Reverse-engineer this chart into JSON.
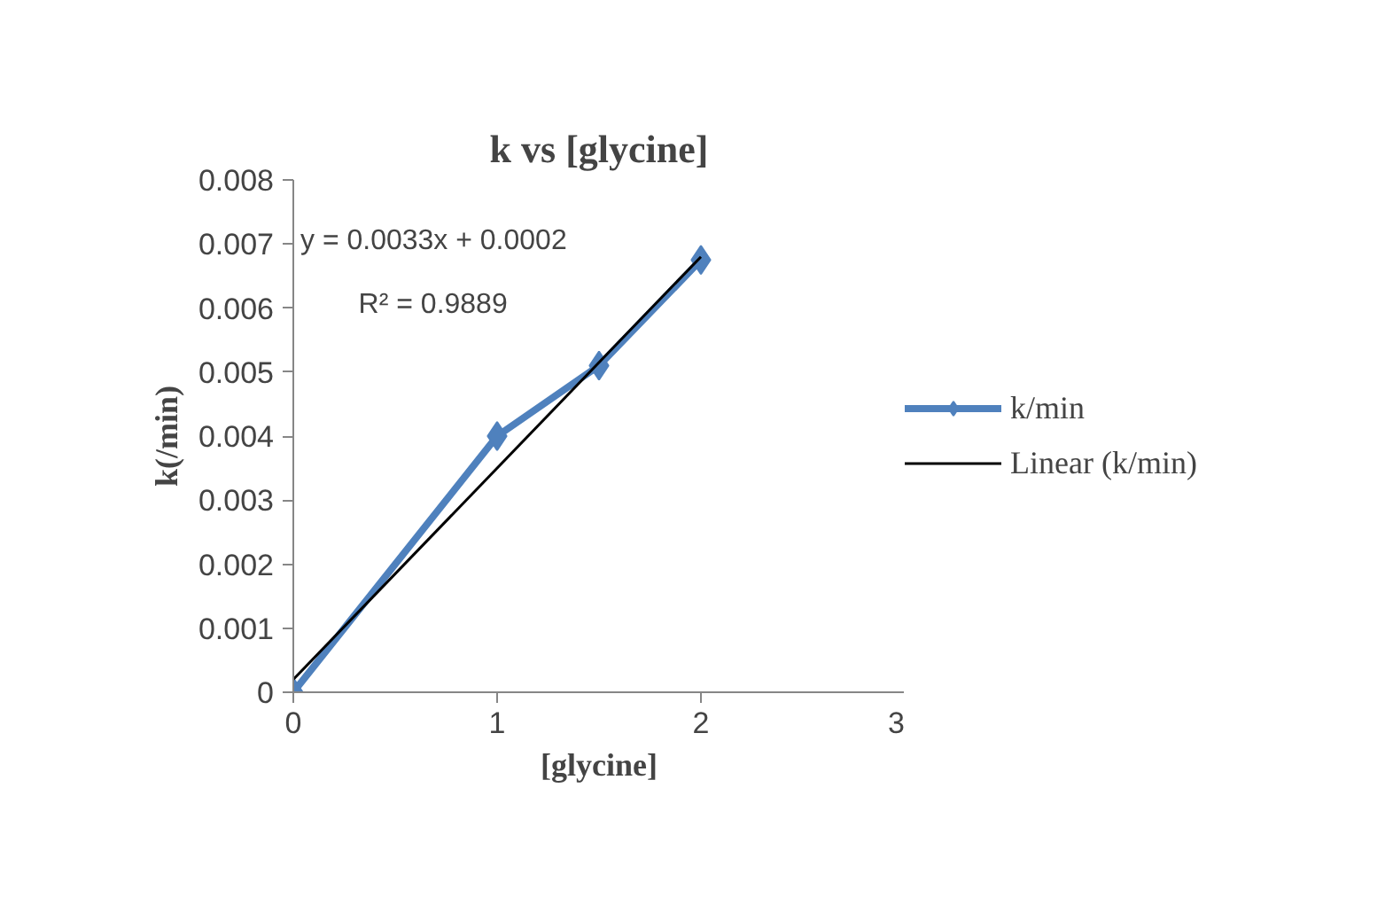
{
  "chart_data": {
    "type": "line",
    "title": "k vs [glycine]",
    "xlabel": "[glycine]",
    "ylabel": "k(/min)",
    "x": [
      0,
      1,
      1.5,
      2
    ],
    "series": [
      {
        "name": "k/min",
        "color": "#4f81bd",
        "values": [
          0,
          0.004,
          0.0051,
          0.00675
        ],
        "marker": "diamond"
      },
      {
        "name": "Linear (k/min)",
        "color": "#000000",
        "type": "line",
        "x": [
          0,
          2
        ],
        "values": [
          0.0002,
          0.0068
        ],
        "marker": "none"
      }
    ],
    "xlim": [
      0,
      3
    ],
    "xticks": [
      0,
      1,
      2,
      3
    ],
    "ylim": [
      0,
      0.008
    ],
    "yticks": [
      0,
      0.001,
      0.002,
      0.003,
      0.004,
      0.005,
      0.006,
      0.007,
      0.008
    ],
    "annotations": [
      "y = 0.0033x + 0.0002",
      "R² = 0.9889"
    ],
    "grid": false,
    "legend": "right"
  }
}
